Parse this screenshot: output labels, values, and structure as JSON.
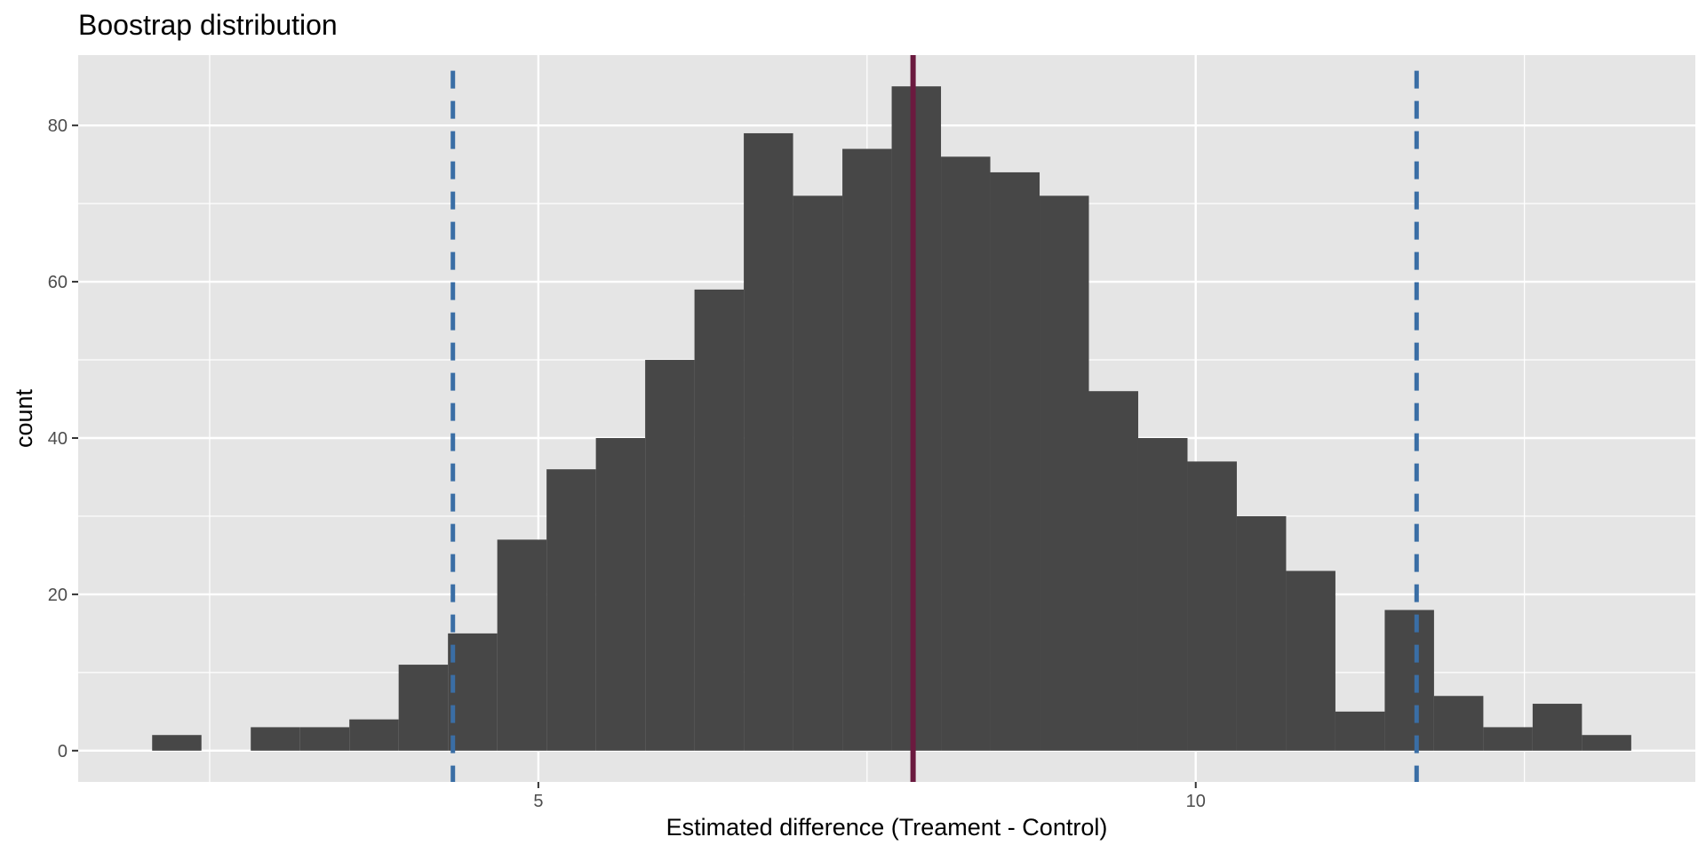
{
  "chart_data": {
    "type": "bar",
    "title": "Boostrap distribution",
    "xlabel": "Estimated difference (Treament - Control)",
    "ylabel": "count",
    "xlim": [
      1.5,
      13.8
    ],
    "ylim": [
      -4,
      89
    ],
    "x_ticks": [
      5,
      10
    ],
    "y_ticks": [
      0,
      20,
      40,
      60,
      80
    ],
    "x_minor_gridlines": [
      2.5,
      7.5,
      12.5
    ],
    "y_minor_gridlines": [
      10,
      30,
      50,
      70
    ],
    "bin_width": 0.375,
    "bins": [
      {
        "x": 2.25,
        "count": 2
      },
      {
        "x": 2.625,
        "count": 0
      },
      {
        "x": 3.0,
        "count": 3
      },
      {
        "x": 3.375,
        "count": 3
      },
      {
        "x": 3.75,
        "count": 4
      },
      {
        "x": 4.125,
        "count": 11
      },
      {
        "x": 4.5,
        "count": 15
      },
      {
        "x": 4.875,
        "count": 27
      },
      {
        "x": 5.25,
        "count": 36
      },
      {
        "x": 5.625,
        "count": 40
      },
      {
        "x": 6.0,
        "count": 50
      },
      {
        "x": 6.375,
        "count": 59
      },
      {
        "x": 6.75,
        "count": 79
      },
      {
        "x": 7.125,
        "count": 71
      },
      {
        "x": 7.5,
        "count": 77
      },
      {
        "x": 7.875,
        "count": 85
      },
      {
        "x": 8.25,
        "count": 76
      },
      {
        "x": 8.625,
        "count": 74
      },
      {
        "x": 9.0,
        "count": 71
      },
      {
        "x": 9.375,
        "count": 46
      },
      {
        "x": 9.75,
        "count": 40
      },
      {
        "x": 10.125,
        "count": 37
      },
      {
        "x": 10.5,
        "count": 30
      },
      {
        "x": 10.875,
        "count": 23
      },
      {
        "x": 11.25,
        "count": 5
      },
      {
        "x": 11.625,
        "count": 18
      },
      {
        "x": 12.0,
        "count": 7
      },
      {
        "x": 12.375,
        "count": 3
      },
      {
        "x": 12.75,
        "count": 6
      },
      {
        "x": 13.125,
        "count": 2
      }
    ],
    "vlines": [
      {
        "name": "lower-ci-line",
        "x": 4.35,
        "style": "dashed",
        "color": "#3a6ea5"
      },
      {
        "name": "estimate-line",
        "x": 7.85,
        "style": "solid",
        "color": "#6b1a3f"
      },
      {
        "name": "upper-ci-line",
        "x": 11.68,
        "style": "dashed",
        "color": "#3a6ea5"
      }
    ],
    "grid": true,
    "colors": {
      "panel_bg": "#e5e5e5",
      "grid_line": "#ffffff",
      "bar_fill": "#474747",
      "ci_line": "#3a6ea5",
      "estimate_line": "#6b1a3f"
    }
  }
}
